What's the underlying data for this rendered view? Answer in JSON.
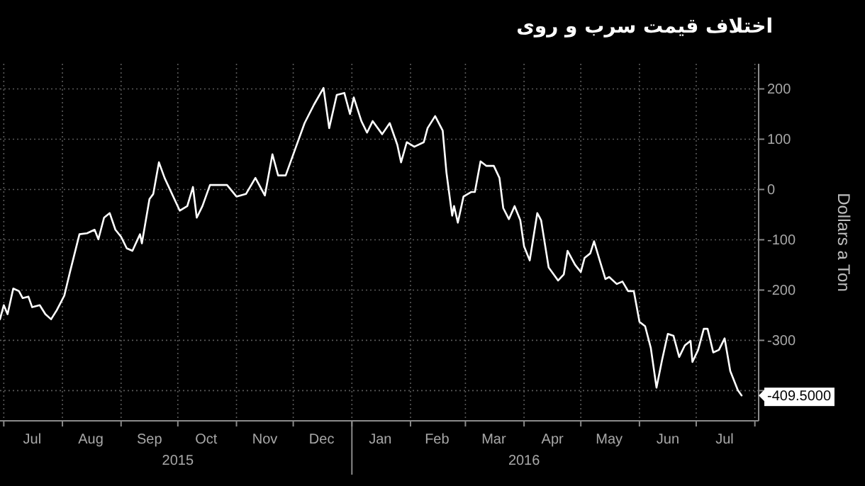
{
  "chart_data": {
    "type": "line",
    "title": "اختلاف قیمت سرب و روی",
    "ylabel": "Dollars a Ton",
    "x": [
      "2015-06-29",
      "2015-07-01",
      "2015-07-03",
      "2015-07-06",
      "2015-07-09",
      "2015-07-11",
      "2015-07-14",
      "2015-07-16",
      "2015-07-20",
      "2015-07-23",
      "2015-07-26",
      "2015-07-29",
      "2015-08-02",
      "2015-08-05",
      "2015-08-10",
      "2015-08-14",
      "2015-08-18",
      "2015-08-20",
      "2015-08-23",
      "2015-08-26",
      "2015-08-29",
      "2015-09-01",
      "2015-09-04",
      "2015-09-07",
      "2015-09-11",
      "2015-09-12",
      "2015-09-16",
      "2015-09-18",
      "2015-09-21",
      "2015-09-24",
      "2015-10-02",
      "2015-10-06",
      "2015-10-09",
      "2015-10-11",
      "2015-10-14",
      "2015-10-18",
      "2015-10-27",
      "2015-11-01",
      "2015-11-06",
      "2015-11-11",
      "2015-11-16",
      "2015-11-20",
      "2015-11-23",
      "2015-11-27",
      "2015-12-02",
      "2015-12-07",
      "2015-12-12",
      "2015-12-17",
      "2015-12-20",
      "2015-12-24",
      "2015-12-28",
      "2015-12-31",
      "2016-01-02",
      "2016-01-06",
      "2016-01-09",
      "2016-01-12",
      "2016-01-17",
      "2016-01-21",
      "2016-01-25",
      "2016-01-27",
      "2016-01-30",
      "2016-02-03",
      "2016-02-08",
      "2016-02-10",
      "2016-02-14",
      "2016-02-18",
      "2016-02-20",
      "2016-02-23",
      "2016-02-24",
      "2016-02-26",
      "2016-02-29",
      "2016-03-04",
      "2016-03-06",
      "2016-03-09",
      "2016-03-12",
      "2016-03-16",
      "2016-03-19",
      "2016-03-21",
      "2016-03-24",
      "2016-03-27",
      "2016-03-30",
      "2016-04-01",
      "2016-04-04",
      "2016-04-08",
      "2016-04-10",
      "2016-04-14",
      "2016-04-19",
      "2016-04-22",
      "2016-04-24",
      "2016-04-28",
      "2016-05-01",
      "2016-05-03",
      "2016-05-06",
      "2016-05-08",
      "2016-05-11",
      "2016-05-14",
      "2016-05-16",
      "2016-05-20",
      "2016-05-23",
      "2016-05-26",
      "2016-05-29",
      "2016-06-01",
      "2016-06-04",
      "2016-06-07",
      "2016-06-10",
      "2016-06-13",
      "2016-06-16",
      "2016-06-19",
      "2016-06-22",
      "2016-06-25",
      "2016-06-28",
      "2016-06-29",
      "2016-07-02",
      "2016-07-05",
      "2016-07-07",
      "2016-07-10",
      "2016-07-13",
      "2016-07-16",
      "2016-07-19",
      "2016-07-23",
      "2016-07-25"
    ],
    "series": [
      {
        "color": "#ffffff",
        "values": [
          -258,
          -230,
          -248,
          -197,
          -202,
          -216,
          -213,
          -234,
          -230,
          -248,
          -258,
          -240,
          -211,
          -164,
          -89,
          -87,
          -80,
          -99,
          -56,
          -47,
          -80,
          -94,
          -117,
          -122,
          -89,
          -107,
          -19,
          -9,
          54,
          23,
          -42,
          -33,
          5,
          -56,
          -33,
          9,
          9,
          -14,
          -9,
          23,
          -12,
          70,
          28,
          28,
          80,
          132,
          169,
          202,
          122,
          188,
          192,
          150,
          183,
          136,
          113,
          136,
          110,
          132,
          89,
          54,
          94,
          85,
          94,
          122,
          146,
          117,
          33,
          -52,
          -33,
          -66,
          -14,
          -5,
          -5,
          56,
          47,
          47,
          23,
          -37,
          -59,
          -33,
          -61,
          -113,
          -141,
          -47,
          -61,
          -155,
          -181,
          -169,
          -122,
          -150,
          -164,
          -136,
          -127,
          -103,
          -141,
          -178,
          -174,
          -188,
          -183,
          -202,
          -202,
          -263,
          -272,
          -315,
          -394,
          -338,
          -287,
          -291,
          -333,
          -310,
          -301,
          -343,
          -319,
          -277,
          -277,
          -324,
          -319,
          -296,
          -361,
          -399,
          -409.5
        ]
      }
    ],
    "xlim": [
      "2015-06-29",
      "2016-08-03"
    ],
    "xticks": [
      {
        "value": "2015-07-01",
        "label": null
      },
      {
        "value": "2015-07-16",
        "label": "Jul"
      },
      {
        "value": "2015-08-01",
        "label": null
      },
      {
        "value": "2015-08-16",
        "label": "Aug"
      },
      {
        "value": "2015-09-01",
        "label": null
      },
      {
        "value": "2015-09-16",
        "label": "Sep"
      },
      {
        "value": "2015-10-01",
        "label": null
      },
      {
        "value": "2015-10-16",
        "label": "Oct"
      },
      {
        "value": "2015-11-01",
        "label": null
      },
      {
        "value": "2015-11-16",
        "label": "Nov"
      },
      {
        "value": "2015-12-01",
        "label": null
      },
      {
        "value": "2015-12-16",
        "label": "Dec"
      },
      {
        "value": "2016-01-01",
        "label": null
      },
      {
        "value": "2016-01-16",
        "label": "Jan"
      },
      {
        "value": "2016-02-01",
        "label": null
      },
      {
        "value": "2016-02-15",
        "label": "Feb"
      },
      {
        "value": "2016-03-01",
        "label": null
      },
      {
        "value": "2016-03-16",
        "label": "Mar"
      },
      {
        "value": "2016-04-01",
        "label": null
      },
      {
        "value": "2016-04-16",
        "label": "Apr"
      },
      {
        "value": "2016-05-01",
        "label": null
      },
      {
        "value": "2016-05-16",
        "label": "May"
      },
      {
        "value": "2016-06-01",
        "label": null
      },
      {
        "value": "2016-06-16",
        "label": "Jun"
      },
      {
        "value": "2016-07-01",
        "label": null
      },
      {
        "value": "2016-07-16",
        "label": "Jul"
      },
      {
        "value": "2016-08-01",
        "label": null
      }
    ],
    "x2lim": [
      "2015-06-29",
      "2016-08-03"
    ],
    "x2ticks": [
      {
        "value": "2015-10-01",
        "label": "2015"
      },
      {
        "value": "2016-01-01",
        "label": null
      },
      {
        "value": "2016-04-01",
        "label": "2016"
      }
    ],
    "ylim": [
      -460,
      250
    ],
    "yticks": [
      {
        "value": -400,
        "label": null
      },
      -300,
      -200,
      -100,
      0,
      100,
      200
    ],
    "grid": true,
    "marker": "none",
    "line_style": "solid",
    "annotations": [
      {
        "text": "-409.5000",
        "x": "2016-07-25",
        "y": -409.5
      }
    ]
  }
}
